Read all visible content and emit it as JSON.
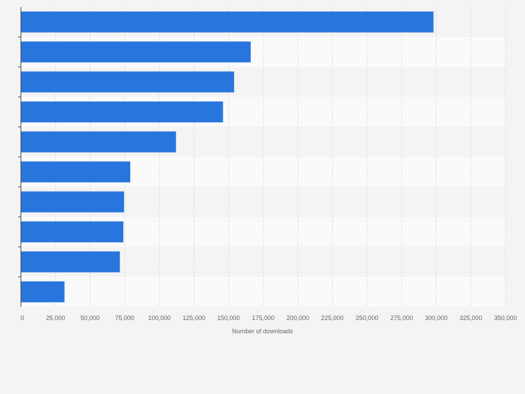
{
  "chart_data": {
    "type": "bar",
    "orientation": "horizontal",
    "categories": [
      "",
      "",
      "",
      "",
      "",
      "",
      "",
      "",
      "",
      ""
    ],
    "values": [
      298000,
      166000,
      154000,
      146000,
      112000,
      79000,
      74500,
      74000,
      71500,
      31500
    ],
    "title": "",
    "xlabel": "Number of downloads",
    "ylabel": "",
    "xlim": [
      0,
      350000
    ],
    "x_ticks": [
      0,
      25000,
      50000,
      75000,
      100000,
      125000,
      150000,
      175000,
      200000,
      225000,
      250000,
      275000,
      300000,
      325000,
      350000
    ],
    "x_tick_labels": [
      "0",
      "25,000",
      "50,000",
      "75,000",
      "100,000",
      "125,000",
      "150,000",
      "175,000",
      "200,000",
      "225,000",
      "250,000",
      "275,000",
      "300,000",
      "325,000",
      "350,000"
    ],
    "grid": true,
    "legend": "none",
    "bar_color": "#2876dd",
    "band_colors": [
      "#f4f4f4",
      "#fafafa"
    ],
    "grid_color": "#dcdcdc",
    "axis_color": "#444444",
    "text_color": "#666666"
  }
}
